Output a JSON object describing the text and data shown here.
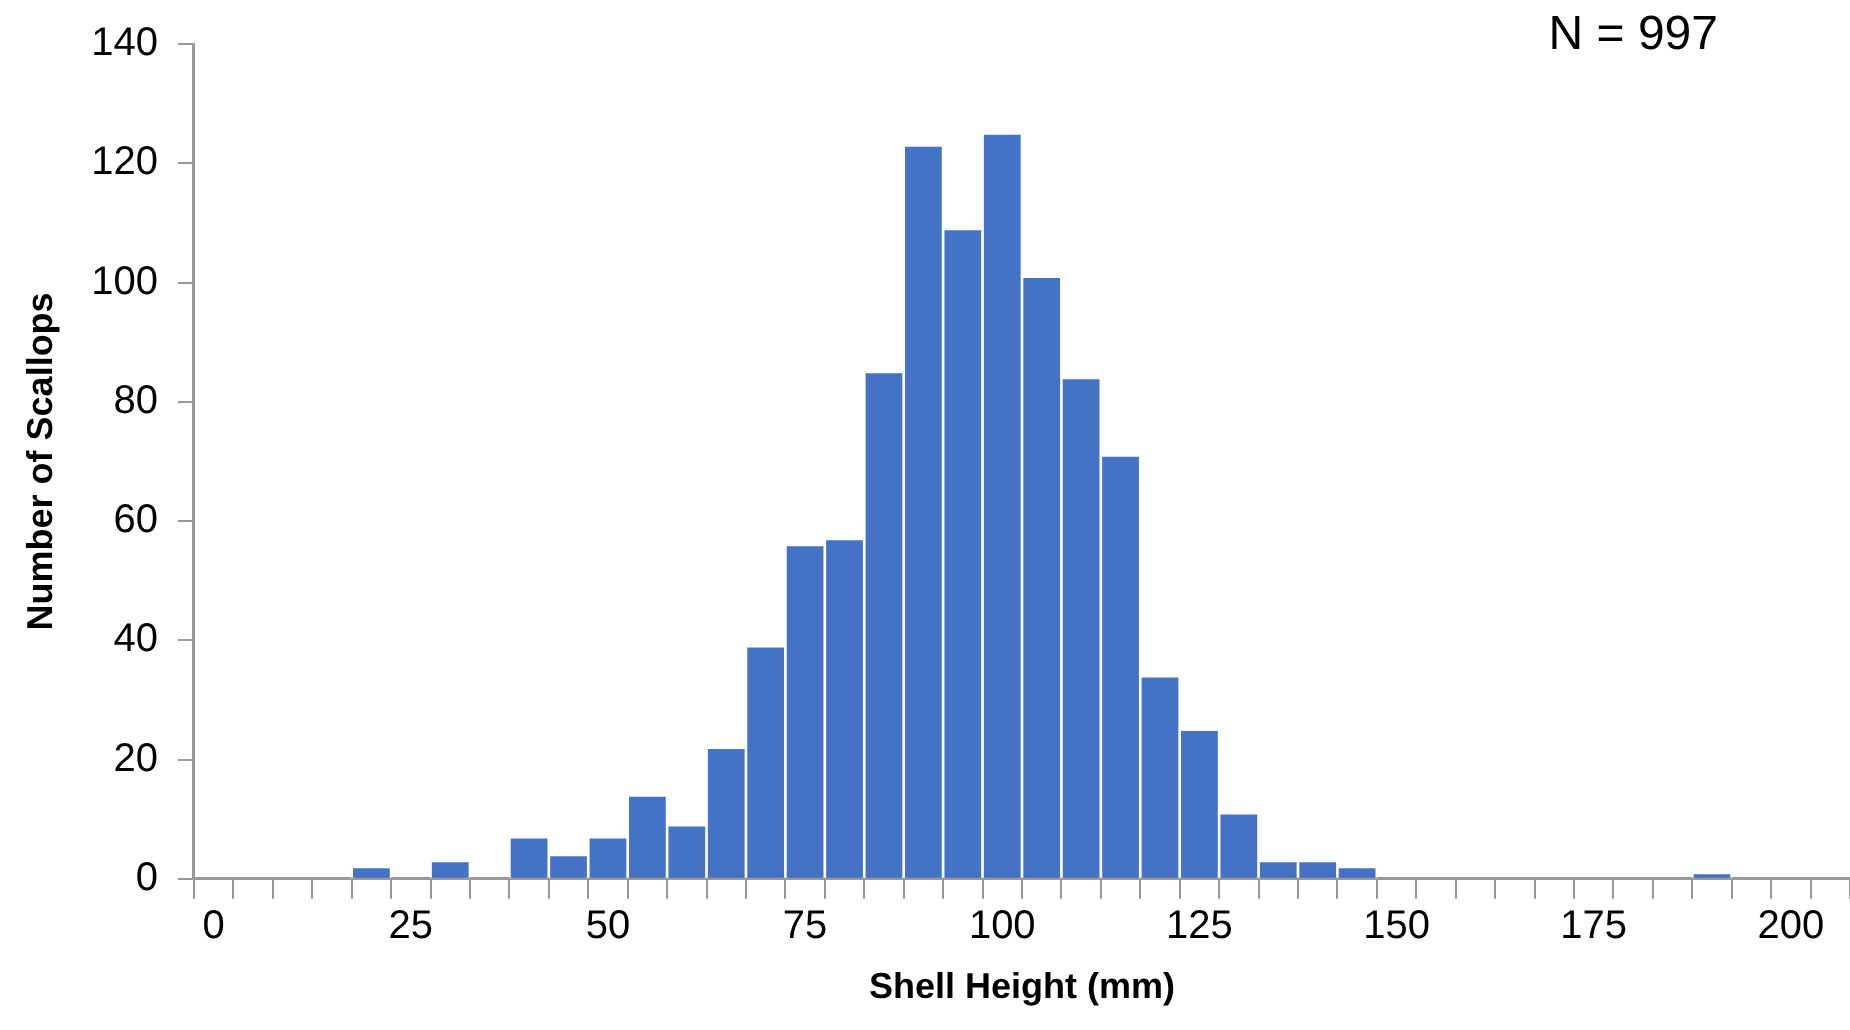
{
  "chart_data": {
    "type": "bar",
    "xlabel": "Shell Height (mm)",
    "ylabel": "Number of Scallops",
    "categories": [
      "0",
      null,
      null,
      null,
      null,
      "25",
      null,
      null,
      null,
      null,
      "50",
      null,
      null,
      null,
      null,
      "75",
      null,
      null,
      null,
      null,
      "100",
      null,
      null,
      null,
      null,
      "125",
      null,
      null,
      null,
      null,
      "150",
      null,
      null,
      null,
      null,
      "175",
      null,
      null,
      null,
      null,
      "200",
      null
    ],
    "values": [
      0,
      0,
      0,
      0,
      2,
      0,
      3,
      0,
      7,
      4,
      7,
      14,
      9,
      22,
      39,
      56,
      57,
      85,
      123,
      109,
      125,
      101,
      84,
      71,
      34,
      25,
      11,
      3,
      3,
      2,
      0,
      0,
      0,
      0,
      0,
      0,
      0,
      0,
      1,
      0,
      0,
      0
    ],
    "color": "#4472c4",
    "ylim": [
      0,
      140
    ],
    "yticks": [
      0,
      20,
      40,
      60,
      80,
      100,
      120,
      140
    ],
    "annotations": [
      "N = 997"
    ]
  }
}
